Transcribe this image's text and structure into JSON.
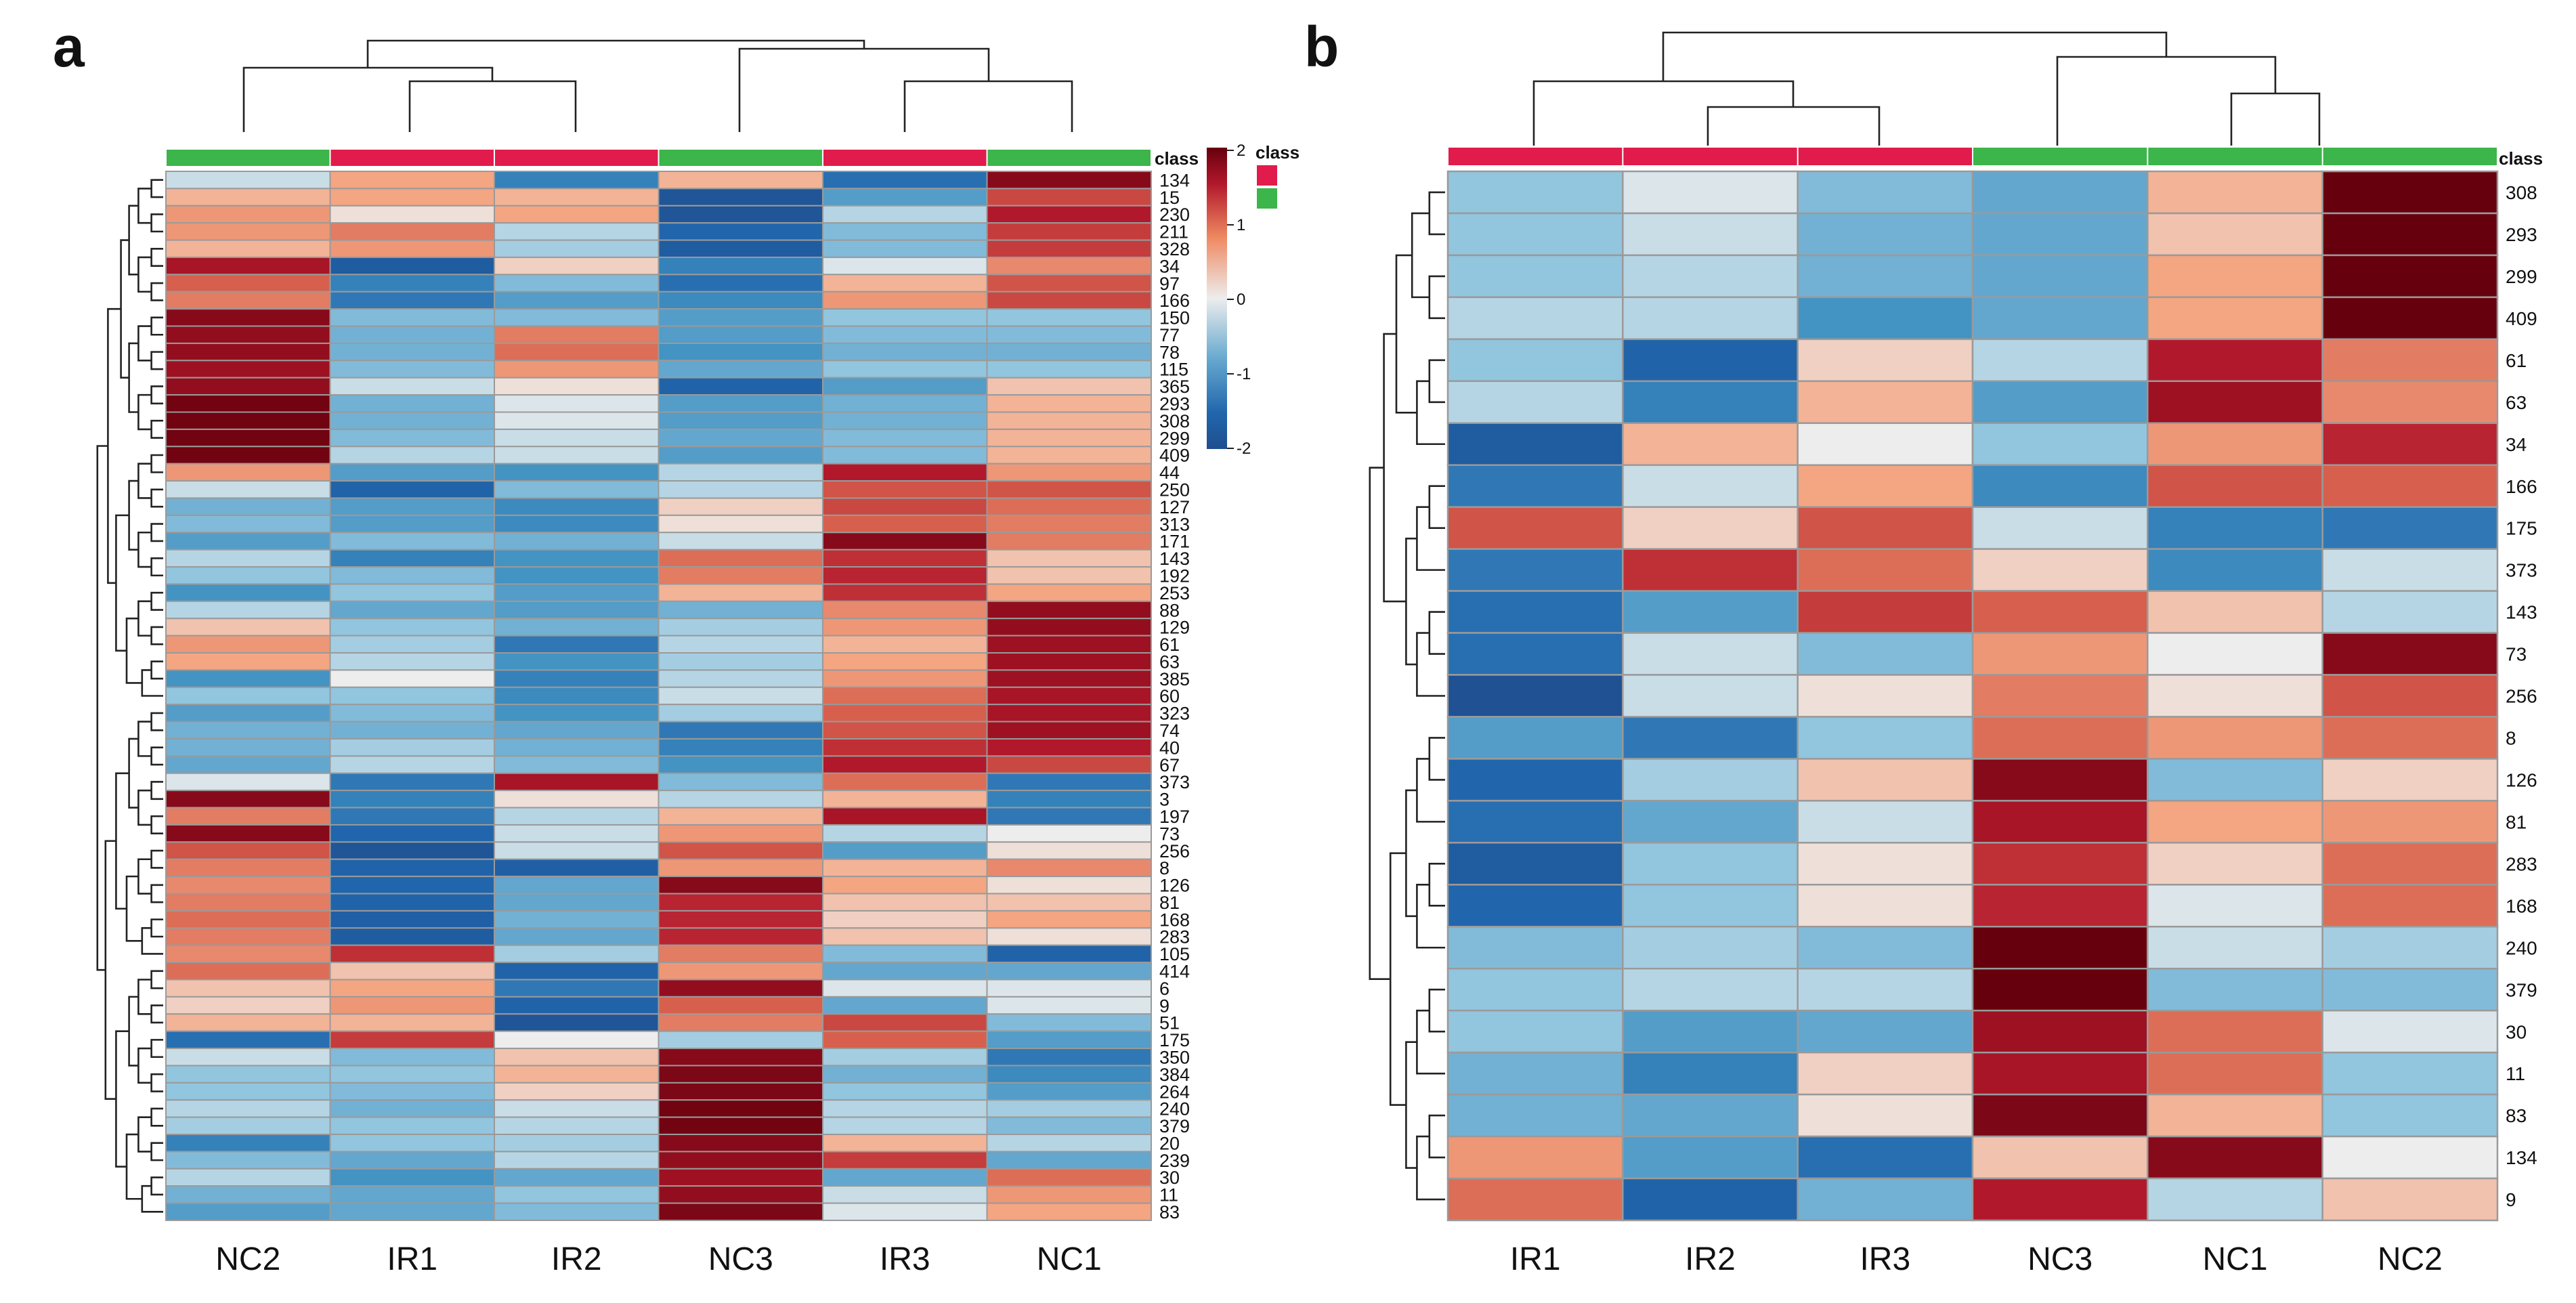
{
  "colors": {
    "ir_class": "#e11b4b",
    "nc_class": "#3cb54a",
    "low": "#1f4e8f",
    "mid": "#ededed",
    "high": "#67000d"
  },
  "legend": {
    "title": "class",
    "ticks": [
      "2",
      "1",
      "0",
      "-1",
      "-2"
    ]
  },
  "chart_data": [
    {
      "panel_label": "a",
      "type": "heatmap",
      "class_label": "class",
      "columns": [
        "NC2",
        "IR1",
        "IR2",
        "NC3",
        "IR3",
        "NC1"
      ],
      "column_class": [
        "NC",
        "IR",
        "IR",
        "NC",
        "IR",
        "NC"
      ],
      "rows": [
        "134",
        "15",
        "230",
        "211",
        "328",
        "34",
        "97",
        "166",
        "150",
        "77",
        "78",
        "115",
        "365",
        "293",
        "308",
        "299",
        "409",
        "44",
        "250",
        "127",
        "313",
        "171",
        "143",
        "192",
        "253",
        "88",
        "129",
        "61",
        "63",
        "385",
        "60",
        "323",
        "74",
        "40",
        "67",
        "373",
        "3",
        "197",
        "73",
        "256",
        "8",
        "126",
        "81",
        "168",
        "283",
        "105",
        "414",
        "6",
        "9",
        "51",
        "175",
        "350",
        "384",
        "264",
        "240",
        "379",
        "20",
        "239",
        "30",
        "11",
        "83"
      ],
      "values": [
        [
          -0.2,
          0.5,
          -1.2,
          0.4,
          -1.4,
          2.0
        ],
        [
          0.4,
          0.5,
          0.4,
          -2.0,
          -0.9,
          1.2
        ],
        [
          0.6,
          0.1,
          0.5,
          -2.0,
          -0.3,
          1.6
        ],
        [
          0.6,
          0.8,
          -0.3,
          -1.5,
          -0.6,
          1.3
        ],
        [
          0.4,
          0.6,
          -0.4,
          -1.8,
          -0.6,
          1.3
        ],
        [
          1.7,
          -1.8,
          0.2,
          -1.2,
          -0.1,
          0.7
        ],
        [
          1.0,
          -1.2,
          -0.6,
          -1.4,
          0.4,
          1.1
        ],
        [
          0.8,
          -1.3,
          -0.9,
          -1.1,
          0.6,
          1.2
        ],
        [
          2.0,
          -0.6,
          -0.6,
          -0.9,
          -0.5,
          -0.5
        ],
        [
          1.9,
          -0.7,
          0.8,
          -0.9,
          -0.6,
          -0.6
        ],
        [
          1.9,
          -0.7,
          0.9,
          -1.0,
          -0.7,
          -0.7
        ],
        [
          1.8,
          -0.6,
          0.6,
          -0.8,
          -0.5,
          -0.5
        ],
        [
          1.9,
          -0.2,
          0.1,
          -1.6,
          -0.9,
          0.3
        ],
        [
          2.2,
          -0.7,
          -0.1,
          -0.9,
          -0.7,
          0.4
        ],
        [
          2.2,
          -0.7,
          -0.1,
          -0.9,
          -0.7,
          0.4
        ],
        [
          2.2,
          -0.6,
          -0.2,
          -0.8,
          -0.6,
          0.4
        ],
        [
          2.2,
          -0.3,
          -0.2,
          -0.9,
          -0.6,
          0.4
        ],
        [
          0.6,
          -0.9,
          -1.0,
          -0.3,
          1.6,
          0.6
        ],
        [
          -0.2,
          -1.6,
          -0.6,
          -0.3,
          1.1,
          1.1
        ],
        [
          -0.7,
          -0.9,
          -1.1,
          0.2,
          1.2,
          0.9
        ],
        [
          -0.6,
          -0.9,
          -1.1,
          0.1,
          1.0,
          0.8
        ],
        [
          -0.9,
          -0.6,
          -0.7,
          -0.2,
          2.0,
          0.8
        ],
        [
          -0.3,
          -1.2,
          -1.0,
          0.9,
          1.4,
          0.3
        ],
        [
          -0.5,
          -0.6,
          -1.0,
          0.8,
          1.5,
          0.3
        ],
        [
          -1.0,
          -0.5,
          -0.9,
          0.4,
          1.4,
          0.5
        ],
        [
          -0.3,
          -0.8,
          -0.9,
          -0.7,
          0.7,
          1.9
        ],
        [
          0.3,
          -0.5,
          -0.7,
          -0.4,
          0.6,
          1.9
        ],
        [
          0.6,
          -0.4,
          -1.3,
          -0.3,
          0.4,
          1.8
        ],
        [
          0.5,
          -0.3,
          -1.0,
          -0.4,
          0.5,
          1.8
        ],
        [
          -1.0,
          0.0,
          -1.2,
          -0.3,
          0.6,
          1.8
        ],
        [
          -0.5,
          -0.5,
          -1.1,
          -0.2,
          0.9,
          1.7
        ],
        [
          -0.9,
          -0.6,
          -1.0,
          -0.4,
          1.0,
          1.7
        ],
        [
          -0.7,
          -0.7,
          -0.8,
          -1.3,
          1.1,
          1.8
        ],
        [
          -0.7,
          -0.4,
          -0.7,
          -1.2,
          1.4,
          1.6
        ],
        [
          -0.8,
          -0.3,
          -0.6,
          -1.0,
          1.6,
          1.2
        ],
        [
          -0.1,
          -1.3,
          1.7,
          -0.6,
          0.9,
          -1.3
        ],
        [
          2.0,
          -1.2,
          0.1,
          -0.3,
          0.4,
          -1.2
        ],
        [
          0.8,
          -1.3,
          -0.3,
          0.4,
          1.7,
          -1.3
        ],
        [
          2.0,
          -1.5,
          -0.2,
          0.6,
          -0.3,
          0.0
        ],
        [
          1.1,
          -2.0,
          -0.2,
          1.1,
          -0.9,
          0.1
        ],
        [
          0.8,
          -1.6,
          -1.7,
          0.6,
          0.4,
          0.7
        ],
        [
          0.7,
          -1.5,
          -0.8,
          2.0,
          0.5,
          0.1
        ],
        [
          0.8,
          -1.6,
          -0.8,
          1.5,
          0.3,
          0.3
        ],
        [
          0.9,
          -1.7,
          -0.7,
          1.5,
          0.2,
          0.5
        ],
        [
          0.8,
          -1.8,
          -0.8,
          1.5,
          0.3,
          0.1
        ],
        [
          0.7,
          1.4,
          -0.4,
          0.8,
          -0.6,
          -1.6
        ],
        [
          0.9,
          0.3,
          -1.6,
          0.6,
          -0.8,
          -0.8
        ],
        [
          0.3,
          0.5,
          -1.3,
          1.9,
          -0.1,
          -0.1
        ],
        [
          0.2,
          0.6,
          -1.6,
          1.0,
          -0.8,
          -0.1
        ],
        [
          0.4,
          0.4,
          -2.0,
          0.8,
          1.2,
          -0.6
        ],
        [
          -1.4,
          1.3,
          0.0,
          -0.4,
          1.0,
          -0.9
        ],
        [
          -0.2,
          -0.6,
          0.3,
          2.0,
          -0.4,
          -1.3
        ],
        [
          -0.5,
          -0.5,
          0.4,
          2.1,
          -0.7,
          -1.1
        ],
        [
          -0.5,
          -0.6,
          0.2,
          2.1,
          -0.5,
          -0.9
        ],
        [
          -0.3,
          -0.7,
          -0.2,
          2.2,
          -0.3,
          -0.4
        ],
        [
          -0.4,
          -0.5,
          -0.3,
          2.2,
          -0.3,
          -0.6
        ],
        [
          -1.2,
          -0.5,
          -0.4,
          2.0,
          0.4,
          -0.3
        ],
        [
          -0.6,
          -0.8,
          -0.3,
          1.9,
          1.3,
          -0.8
        ],
        [
          -0.3,
          -1.0,
          -0.8,
          1.8,
          -0.8,
          0.9
        ],
        [
          -0.7,
          -0.8,
          -0.5,
          1.9,
          -0.2,
          0.6
        ],
        [
          -0.9,
          -0.8,
          -0.6,
          2.1,
          -0.1,
          0.5
        ]
      ]
    },
    {
      "panel_label": "b",
      "type": "heatmap",
      "class_label": "class",
      "columns": [
        "IR1",
        "IR2",
        "IR3",
        "NC3",
        "NC1",
        "NC2"
      ],
      "column_class": [
        "IR",
        "IR",
        "IR",
        "NC",
        "NC",
        "NC"
      ],
      "rows": [
        "308",
        "293",
        "299",
        "409",
        "61",
        "63",
        "34",
        "166",
        "175",
        "373",
        "143",
        "73",
        "256",
        "8",
        "126",
        "81",
        "283",
        "168",
        "240",
        "379",
        "30",
        "11",
        "83",
        "134",
        "9"
      ],
      "values": [
        [
          -0.5,
          -0.1,
          -0.6,
          -0.8,
          0.4,
          2.3
        ],
        [
          -0.5,
          -0.2,
          -0.7,
          -0.8,
          0.3,
          2.3
        ],
        [
          -0.5,
          -0.3,
          -0.7,
          -0.8,
          0.5,
          2.3
        ],
        [
          -0.3,
          -0.3,
          -1.0,
          -0.8,
          0.5,
          2.3
        ],
        [
          -0.5,
          -1.6,
          0.2,
          -0.3,
          1.6,
          0.8
        ],
        [
          -0.3,
          -1.2,
          0.4,
          -0.9,
          1.8,
          0.7
        ],
        [
          -1.8,
          0.4,
          0.0,
          -0.5,
          0.6,
          1.5
        ],
        [
          -1.3,
          -0.2,
          0.5,
          -1.1,
          1.1,
          1.0
        ],
        [
          1.1,
          0.2,
          1.1,
          -0.2,
          -1.2,
          -1.3
        ],
        [
          -1.3,
          1.4,
          0.9,
          0.2,
          -1.1,
          -0.2
        ],
        [
          -1.4,
          -0.9,
          1.3,
          1.0,
          0.3,
          -0.3
        ],
        [
          -1.4,
          -0.2,
          -0.6,
          0.6,
          0.0,
          2.0
        ],
        [
          -2.1,
          -0.2,
          0.1,
          0.8,
          0.1,
          1.1
        ],
        [
          -0.9,
          -1.3,
          -0.5,
          0.9,
          0.6,
          0.9
        ],
        [
          -1.5,
          -0.4,
          0.3,
          2.0,
          -0.6,
          0.2
        ],
        [
          -1.4,
          -0.8,
          -0.2,
          1.7,
          0.5,
          0.6
        ],
        [
          -1.8,
          -0.5,
          0.1,
          1.4,
          0.2,
          0.9
        ],
        [
          -1.5,
          -0.5,
          0.1,
          1.5,
          -0.1,
          0.9
        ],
        [
          -0.6,
          -0.4,
          -0.6,
          2.5,
          -0.2,
          -0.4
        ],
        [
          -0.5,
          -0.3,
          -0.3,
          2.5,
          -0.6,
          -0.6
        ],
        [
          -0.5,
          -0.9,
          -0.8,
          1.8,
          0.9,
          -0.1
        ],
        [
          -0.7,
          -1.2,
          0.2,
          1.7,
          0.9,
          -0.5
        ],
        [
          -0.7,
          -0.8,
          0.1,
          2.1,
          0.4,
          -0.5
        ],
        [
          0.6,
          -0.9,
          -1.4,
          0.3,
          2.0,
          0.0
        ],
        [
          0.9,
          -1.6,
          -0.7,
          1.6,
          -0.3,
          0.3
        ]
      ]
    }
  ]
}
